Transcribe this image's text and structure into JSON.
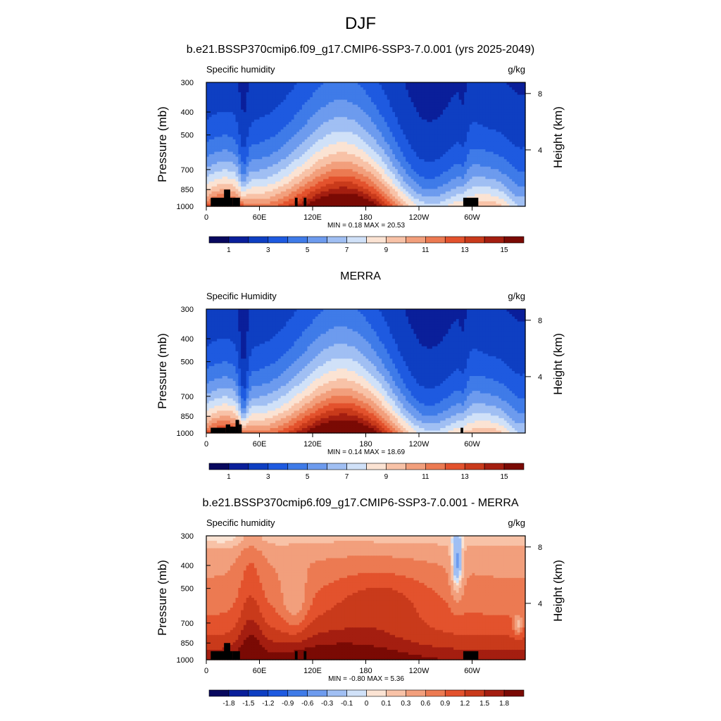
{
  "page": {
    "title": "DJF"
  },
  "panels": [
    {
      "subtitle": "b.e21.BSSP370cmip6.f09_g17.CMIP6-SSP3-7.0.001 (yrs 2025-2049)",
      "variable_label": "Specific humidity",
      "units_label": "g/kg",
      "minmax_text": "MIN =   0.18  MAX =  20.53",
      "y_axis_title": "Pressure (mb)",
      "y2_axis_title": "Height (km)",
      "colorbar": "abs"
    },
    {
      "subtitle": "MERRA",
      "variable_label": "Specific Humidity",
      "units_label": "g/kg",
      "minmax_text": "MIN =   0.14  MAX =  18.69",
      "y_axis_title": "Pressure (mb)",
      "y2_axis_title": "Height (km)",
      "colorbar": "abs"
    },
    {
      "subtitle": "b.e21.BSSP370cmip6.f09_g17.CMIP6-SSP3-7.0.001 - MERRA",
      "variable_label": "Specific humidity",
      "units_label": "g/kg",
      "minmax_text": "MIN =  -0.80  MAX =   5.36",
      "y_axis_title": "Pressure (mb)",
      "y2_axis_title": "Height (km)",
      "colorbar": "diff"
    }
  ],
  "chart_data": [
    {
      "type": "heatmap",
      "title": "b.e21.BSSP370cmip6.f09_g17.CMIP6-SSP3-7.0.001 (yrs 2025-2049)",
      "variable": "Specific humidity",
      "units": "g/kg",
      "x_ticks": [
        "0",
        "60E",
        "120E",
        "180",
        "120W",
        "60W"
      ],
      "x_tick_values": [
        0,
        60,
        120,
        180,
        240,
        300
      ],
      "xlim": [
        0,
        360
      ],
      "ylabel": "Pressure (mb)",
      "y_ticks": [
        300,
        400,
        500,
        700,
        850,
        1000
      ],
      "ylim": [
        1000,
        300
      ],
      "y_scale": "log",
      "y2label": "Height (km)",
      "y2_ticks": [
        8,
        4
      ],
      "min": 0.18,
      "max": 20.53,
      "colorbar_levels": [
        0.5,
        1,
        2,
        3,
        4,
        5,
        6,
        7,
        8,
        9,
        10,
        11,
        12,
        13,
        14,
        15
      ],
      "colorbar_labels": [
        "1",
        "3",
        "5",
        "7",
        "9",
        "11",
        "13",
        "15"
      ]
    },
    {
      "type": "heatmap",
      "title": "MERRA",
      "variable": "Specific Humidity",
      "units": "g/kg",
      "x_ticks": [
        "0",
        "60E",
        "120E",
        "180",
        "120W",
        "60W"
      ],
      "x_tick_values": [
        0,
        60,
        120,
        180,
        240,
        300
      ],
      "xlim": [
        0,
        360
      ],
      "ylabel": "Pressure (mb)",
      "y_ticks": [
        300,
        400,
        500,
        700,
        850,
        1000
      ],
      "ylim": [
        1000,
        300
      ],
      "y_scale": "log",
      "y2label": "Height (km)",
      "y2_ticks": [
        8,
        4
      ],
      "min": 0.14,
      "max": 18.69,
      "colorbar_levels": [
        0.5,
        1,
        2,
        3,
        4,
        5,
        6,
        7,
        8,
        9,
        10,
        11,
        12,
        13,
        14,
        15
      ],
      "colorbar_labels": [
        "1",
        "3",
        "5",
        "7",
        "9",
        "11",
        "13",
        "15"
      ]
    },
    {
      "type": "heatmap",
      "title": "b.e21.BSSP370cmip6.f09_g17.CMIP6-SSP3-7.0.001 - MERRA",
      "variable": "Specific humidity",
      "units": "g/kg",
      "x_ticks": [
        "0",
        "60E",
        "120E",
        "180",
        "120W",
        "60W"
      ],
      "x_tick_values": [
        0,
        60,
        120,
        180,
        240,
        300
      ],
      "xlim": [
        0,
        360
      ],
      "ylabel": "Pressure (mb)",
      "y_ticks": [
        300,
        400,
        500,
        700,
        850,
        1000
      ],
      "ylim": [
        1000,
        300
      ],
      "y_scale": "log",
      "y2label": "Height (km)",
      "y2_ticks": [
        8,
        4
      ],
      "min": -0.8,
      "max": 5.36,
      "colorbar_levels": [
        -1.8,
        -1.5,
        -1.2,
        -0.9,
        -0.6,
        -0.3,
        -0.1,
        0,
        0.1,
        0.3,
        0.6,
        0.9,
        1.2,
        1.5,
        1.8
      ],
      "colorbar_labels": [
        "-1.8",
        "-1.5",
        "-1.2",
        "-0.9",
        "-0.6",
        "-0.3",
        "-0.1",
        "0",
        "0.1",
        "0.3",
        "0.6",
        "0.9",
        "1.2",
        "1.5",
        "1.8"
      ]
    }
  ],
  "colors": {
    "abs_palette": [
      "#08085e",
      "#0a1f9a",
      "#0e3fc2",
      "#1e5ae0",
      "#3f7be8",
      "#6d9bee",
      "#a0bff3",
      "#d0e1f8",
      "#fbe3d3",
      "#f8c2a7",
      "#f29f7c",
      "#ec7a52",
      "#e3522d",
      "#c93a1b",
      "#a41e10",
      "#7a0a04"
    ],
    "diff_palette": [
      "#08085e",
      "#0a1f9a",
      "#0e3fc2",
      "#1e5ae0",
      "#3f7be8",
      "#6d9bee",
      "#a0bff3",
      "#d0e1f8",
      "#fbe3d3",
      "#f8c2a7",
      "#f29f7c",
      "#ec7a52",
      "#e3522d",
      "#c93a1b",
      "#a41e10",
      "#7a0a04"
    ],
    "terrain": "#000000"
  }
}
